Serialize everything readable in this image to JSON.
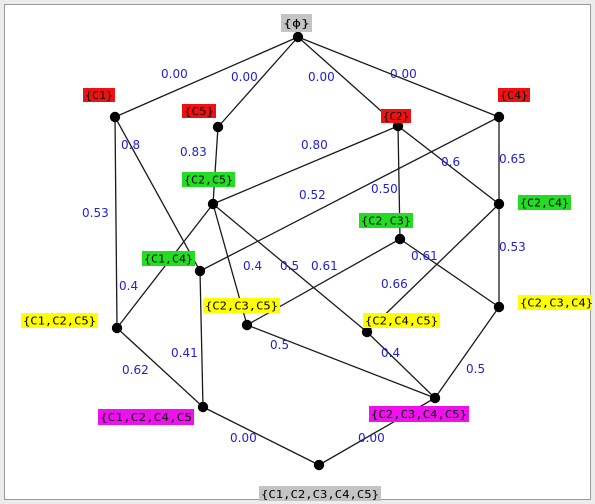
{
  "colors": {
    "red": "#ee1111",
    "green": "#22dd22",
    "yellow": "#ffff00",
    "magenta": "#ee11ee",
    "gray": "#c4c4c4",
    "weight": "#1f1fd6"
  },
  "nodes": [
    {
      "id": "empty",
      "label": "{ϕ}",
      "color": "gray"
    },
    {
      "id": "c1",
      "label": "{C1}",
      "color": "red"
    },
    {
      "id": "c5",
      "label": "{C5}",
      "color": "red"
    },
    {
      "id": "c2",
      "label": "{C2}",
      "color": "red"
    },
    {
      "id": "c4",
      "label": "{C4}",
      "color": "red"
    },
    {
      "id": "c2c5",
      "label": "{C2,C5}",
      "color": "green"
    },
    {
      "id": "c2c3",
      "label": "{C2,C3}",
      "color": "green"
    },
    {
      "id": "c2c4",
      "label": "{C2,C4}",
      "color": "green"
    },
    {
      "id": "c1c4",
      "label": "{C1,C4}",
      "color": "green"
    },
    {
      "id": "c1c2c5",
      "label": "{C1,C2,C5}",
      "color": "yellow"
    },
    {
      "id": "c2c3c5",
      "label": "{C2,C3,C5}",
      "color": "yellow"
    },
    {
      "id": "c2c4c5",
      "label": "{C2,C4,C5}",
      "color": "yellow"
    },
    {
      "id": "c2c3c4",
      "label": "{C2,C3,C4}",
      "color": "yellow"
    },
    {
      "id": "c1c2c4c5",
      "label": "{C1,C2,C4,C5",
      "color": "magenta"
    },
    {
      "id": "c2c3c4c5",
      "label": "{C2,C3,C4,C5}",
      "color": "magenta"
    },
    {
      "id": "all",
      "label": "{C1,C2,C3,C4,C5}",
      "color": "gray"
    }
  ],
  "edges": [
    {
      "from": "empty",
      "to": "c1"
    },
    {
      "from": "empty",
      "to": "c5"
    },
    {
      "from": "empty",
      "to": "c2"
    },
    {
      "from": "empty",
      "to": "c4"
    },
    {
      "from": "c1",
      "to": "c1c2c5"
    },
    {
      "from": "c1",
      "to": "c1c4"
    },
    {
      "from": "c5",
      "to": "c2c5"
    },
    {
      "from": "c2",
      "to": "c2c5"
    },
    {
      "from": "c2",
      "to": "c2c3"
    },
    {
      "from": "c2",
      "to": "c2c4"
    },
    {
      "from": "c4",
      "to": "c2c4"
    },
    {
      "from": "c4",
      "to": "c1c4"
    },
    {
      "from": "c2c5",
      "to": "c1c2c5"
    },
    {
      "from": "c2c5",
      "to": "c2c3c5"
    },
    {
      "from": "c2c5",
      "to": "c2c4c5"
    },
    {
      "from": "c2c3",
      "to": "c2c3c5"
    },
    {
      "from": "c2c3",
      "to": "c2c3c4"
    },
    {
      "from": "c2c4",
      "to": "c2c3c4"
    },
    {
      "from": "c2c4",
      "to": "c2c4c5"
    },
    {
      "from": "c1c4",
      "to": "c1c2c4c5"
    },
    {
      "from": "c1c2c5",
      "to": "c1c2c4c5"
    },
    {
      "from": "c2c3c5",
      "to": "c2c3c4c5"
    },
    {
      "from": "c2c4c5",
      "to": "c2c3c4c5"
    },
    {
      "from": "c2c3c4",
      "to": "c2c3c4c5"
    },
    {
      "from": "c1c2c4c5",
      "to": "all"
    },
    {
      "from": "c2c3c4c5",
      "to": "all"
    }
  ],
  "weights": [
    {
      "id": "w-empty-c1",
      "text": "0.00"
    },
    {
      "id": "w-empty-c5",
      "text": "0.00"
    },
    {
      "id": "w-empty-c2",
      "text": "0.00"
    },
    {
      "id": "w-empty-c4",
      "text": "0.00"
    },
    {
      "id": "w-c1-c1c4",
      "text": "0.8"
    },
    {
      "id": "w-c5-c2c5",
      "text": "0.83"
    },
    {
      "id": "w-c4-c1c4",
      "text": "0.80"
    },
    {
      "id": "w-c2-c2c4",
      "text": "0.6"
    },
    {
      "id": "w-c4-c2c4",
      "text": "0.65"
    },
    {
      "id": "w-c1-c1c2c5",
      "text": "0.53"
    },
    {
      "id": "w-c2-c2c5",
      "text": "0.52"
    },
    {
      "id": "w-c2-c2c3",
      "text": "0.50"
    },
    {
      "id": "w-c2c4-c2c3c4",
      "text": "0.53"
    },
    {
      "id": "w-c2c5-c2c3c5",
      "text": "0.4"
    },
    {
      "id": "w-c2c5-c2c4c5",
      "text": "0.5"
    },
    {
      "id": "w-c2c3-c2c3c5",
      "text": "0.61"
    },
    {
      "id": "w-c2c3-c2c3c4",
      "text": "0.61"
    },
    {
      "id": "w-c2c4-c2c4c5",
      "text": "0.66"
    },
    {
      "id": "w-c2c5-c1c2c5",
      "text": "0.4"
    },
    {
      "id": "w-c1c4-c1c2c4c5",
      "text": "0.41"
    },
    {
      "id": "w-c2c3c5-c2c3c4c5",
      "text": "0.5"
    },
    {
      "id": "w-c2c4c5-c2c3c4c5",
      "text": "0.4"
    },
    {
      "id": "w-c2c3c4-c2c3c4c5",
      "text": "0.5"
    },
    {
      "id": "w-c1c2c5-c1c2c4c5",
      "text": "0.62"
    },
    {
      "id": "w-c1c2c4c5-all",
      "text": "0.00"
    },
    {
      "id": "w-c2c3c4c5-all",
      "text": "0.00"
    }
  ]
}
